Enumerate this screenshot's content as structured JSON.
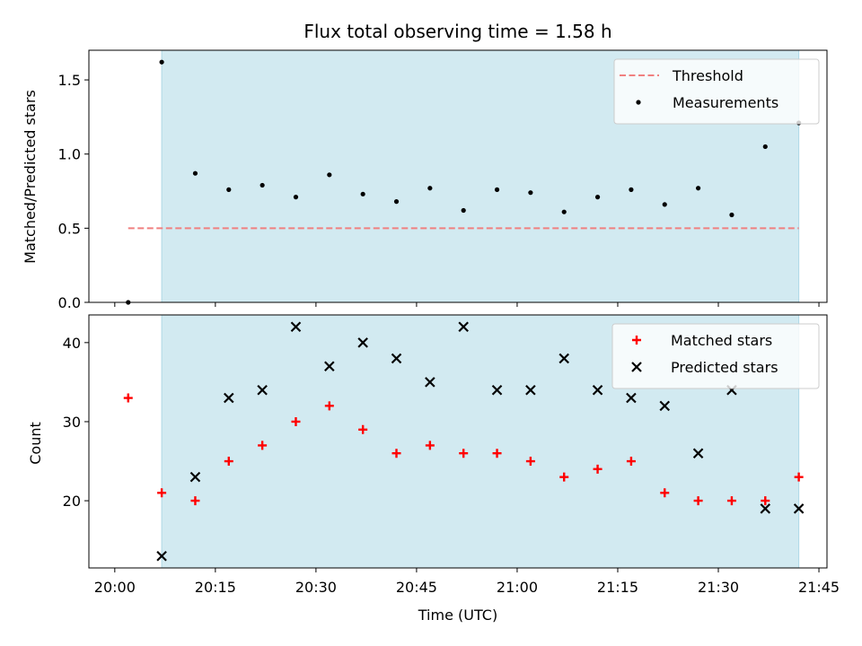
{
  "chart_data": {
    "title": "Flux total observing time = 1.58 h",
    "xlabel": "Time (UTC)",
    "x_ticks": [
      "20:00",
      "20:15",
      "20:30",
      "20:45",
      "21:00",
      "21:15",
      "21:30",
      "21:45"
    ],
    "shaded_region": {
      "start": "20:07",
      "end": "21:42",
      "color": "#add8e6"
    },
    "panels": [
      {
        "type": "scatter",
        "ylabel": "Matched/Predicted stars",
        "ylim": [
          0,
          1.7
        ],
        "y_ticks": [
          "0.0",
          "0.5",
          "1.0",
          "1.5"
        ],
        "legend_position": "upper right",
        "threshold": {
          "name": "Threshold",
          "value": 0.5,
          "color": "#f08080",
          "from": "20:02",
          "to": "21:42"
        },
        "series": [
          {
            "name": "Measurements",
            "marker": "dot",
            "color": "#000000",
            "x": [
              "20:02",
              "20:07",
              "20:12",
              "20:17",
              "20:22",
              "20:27",
              "20:32",
              "20:37",
              "20:42",
              "20:47",
              "20:52",
              "20:57",
              "21:02",
              "21:07",
              "21:12",
              "21:17",
              "21:22",
              "21:27",
              "21:32",
              "21:37",
              "21:42"
            ],
            "y": [
              0.0,
              1.62,
              0.87,
              0.76,
              0.79,
              0.71,
              0.86,
              0.73,
              0.68,
              0.77,
              0.62,
              0.76,
              0.74,
              0.61,
              0.71,
              0.76,
              0.66,
              0.77,
              0.59,
              1.05,
              1.21
            ]
          }
        ]
      },
      {
        "type": "scatter",
        "ylabel": "Count",
        "ylim": [
          11.5,
          43.5
        ],
        "y_ticks": [
          "20",
          "30",
          "40"
        ],
        "legend_position": "upper right",
        "series": [
          {
            "name": "Matched stars",
            "marker": "plus",
            "color": "#ff0000",
            "x": [
              "20:02",
              "20:07",
              "20:12",
              "20:17",
              "20:22",
              "20:27",
              "20:32",
              "20:37",
              "20:42",
              "20:47",
              "20:52",
              "20:57",
              "21:02",
              "21:07",
              "21:12",
              "21:17",
              "21:22",
              "21:27",
              "21:32",
              "21:37",
              "21:42"
            ],
            "y": [
              33,
              21,
              20,
              25,
              27,
              30,
              32,
              29,
              26,
              27,
              26,
              26,
              25,
              23,
              24,
              25,
              21,
              20,
              20,
              20,
              23
            ]
          },
          {
            "name": "Predicted stars",
            "marker": "x",
            "color": "#000000",
            "x": [
              "20:07",
              "20:12",
              "20:17",
              "20:22",
              "20:27",
              "20:32",
              "20:37",
              "20:42",
              "20:47",
              "20:52",
              "20:57",
              "21:02",
              "21:07",
              "21:12",
              "21:17",
              "21:22",
              "21:27",
              "21:32",
              "21:37",
              "21:42"
            ],
            "y": [
              13,
              23,
              33,
              34,
              42,
              37,
              40,
              38,
              35,
              42,
              34,
              34,
              38,
              34,
              33,
              32,
              26,
              34,
              19,
              19
            ]
          }
        ]
      }
    ]
  }
}
